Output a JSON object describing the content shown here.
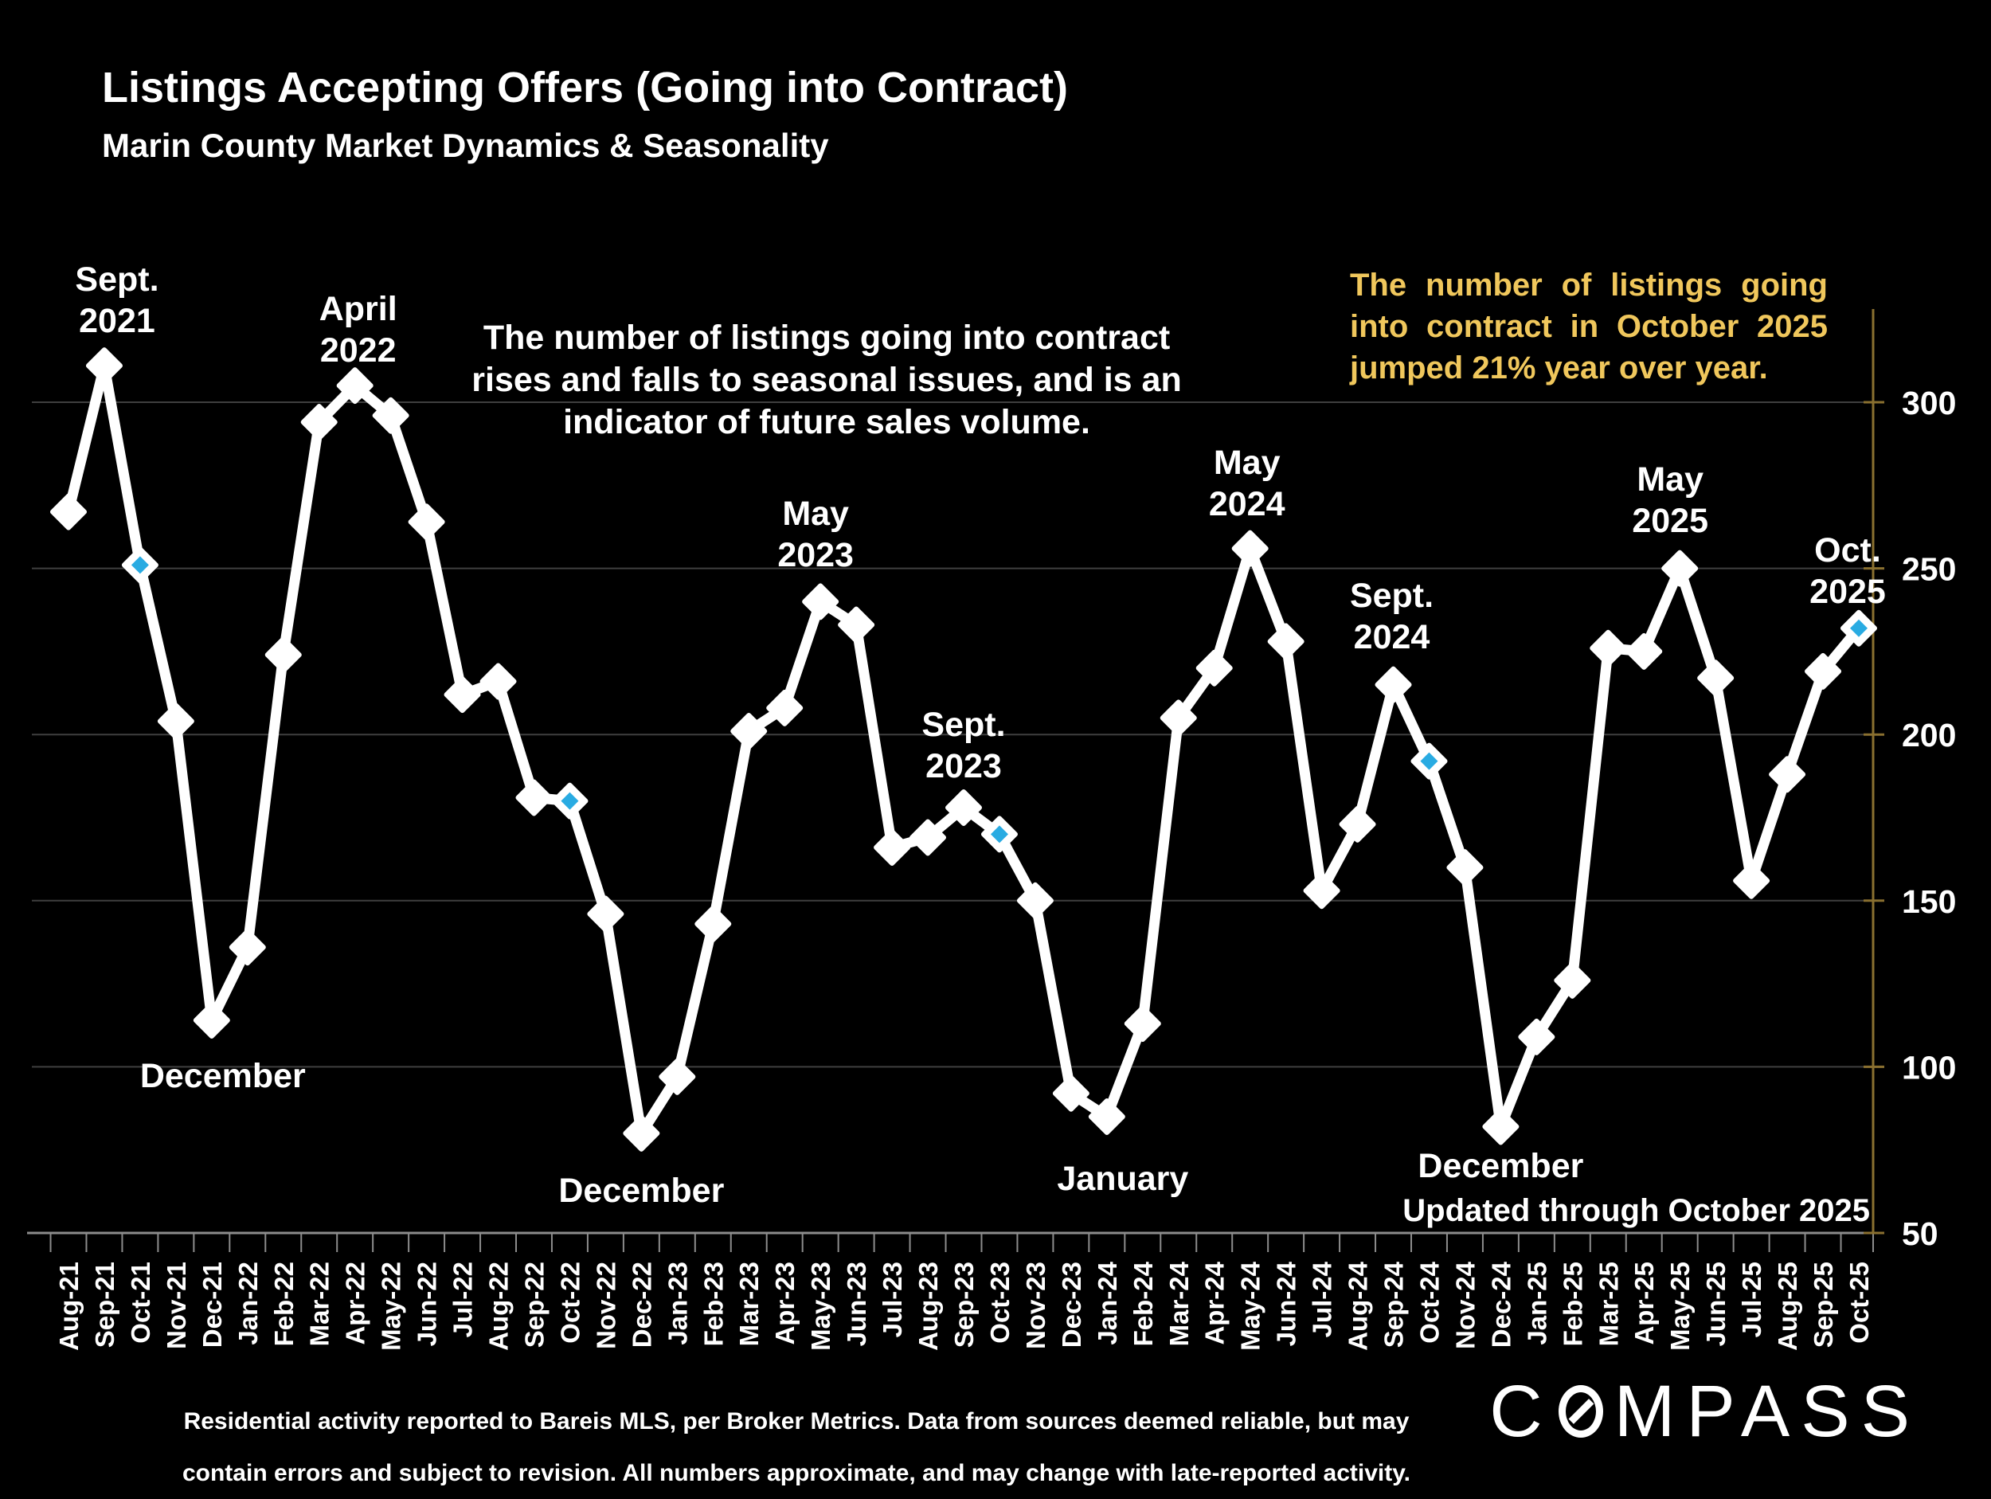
{
  "slide": {
    "title": "Listings Accepting Offers (Going into Contract)",
    "subtitle": "Marin County Market Dynamics & Seasonality",
    "center_annotation_lines": [
      "The number of listings going into contract",
      "rises and falls to seasonal issues, and is an",
      "indicator of future sales volume."
    ],
    "highlight_annotation_lines": [
      "The number of listings going",
      "into contract in October 2025",
      "jumped 21% year over year."
    ],
    "updated_note": "Updated through October 2025",
    "footer_lines": [
      "Residential activity reported to Bareis MLS, per Broker Metrics. Data from sources deemed reliable, but may",
      "contain errors and subject to revision. All numbers approximate, and may change with late-reported activity."
    ],
    "logo_text": "COMPASS"
  },
  "colors": {
    "background": "#000000",
    "line": "#FFFFFF",
    "marker": "#FFFFFF",
    "highlight": "#29ABE2",
    "gridline": "#3F3F3F",
    "x_axis": "#8C8C8C",
    "y_axis": "#8A7030",
    "text": "#FFFFFF",
    "annotation_yellow": "#F0C75C"
  },
  "chart_data": {
    "type": "line",
    "title": "Listings Accepting Offers (Going into Contract)",
    "xlabel": "",
    "ylabel": "",
    "ylim": [
      50,
      300
    ],
    "yticks": [
      50,
      100,
      150,
      200,
      250,
      300
    ],
    "grid": "horizontal",
    "y_axis_side": "right",
    "legend": "none",
    "categories": [
      "Aug-21",
      "Sep-21",
      "Oct-21",
      "Nov-21",
      "Dec-21",
      "Jan-22",
      "Feb-22",
      "Mar-22",
      "Apr-22",
      "May-22",
      "Jun-22",
      "Jul-22",
      "Aug-22",
      "Sep-22",
      "Oct-22",
      "Nov-22",
      "Dec-22",
      "Jan-23",
      "Feb-23",
      "Mar-23",
      "Apr-23",
      "May-23",
      "Jun-23",
      "Jul-23",
      "Aug-23",
      "Sep-23",
      "Oct-23",
      "Nov-23",
      "Dec-23",
      "Jan-24",
      "Feb-24",
      "Mar-24",
      "Apr-24",
      "May-24",
      "Jun-24",
      "Jul-24",
      "Aug-24",
      "Sep-24",
      "Oct-24",
      "Nov-24",
      "Dec-24",
      "Jan-25",
      "Feb-25",
      "Mar-25",
      "Apr-25",
      "May-25",
      "Jun-25",
      "Jul-25",
      "Aug-25",
      "Sep-25",
      "Oct-25"
    ],
    "values": [
      267,
      311,
      251,
      204,
      114,
      136,
      224,
      294,
      305,
      296,
      264,
      212,
      216,
      181,
      180,
      146,
      80,
      97,
      143,
      201,
      208,
      240,
      233,
      166,
      169,
      178,
      170,
      150,
      92,
      85,
      113,
      205,
      220,
      256,
      228,
      153,
      173,
      215,
      192,
      160,
      82,
      109,
      126,
      226,
      225,
      250,
      217,
      156,
      188,
      219,
      232
    ],
    "highlighted_indices": [
      2,
      14,
      26,
      38,
      50
    ],
    "callouts": [
      {
        "lines": [
          "Sept.",
          "2021"
        ],
        "point": 1,
        "side": "above"
      },
      {
        "lines": [
          "April",
          "2022"
        ],
        "point": 8,
        "side": "above"
      },
      {
        "lines": [
          "May",
          "2023"
        ],
        "point": 21,
        "side": "above"
      },
      {
        "lines": [
          "Sept.",
          "2023"
        ],
        "point": 25,
        "side": "above"
      },
      {
        "lines": [
          "May",
          "2024"
        ],
        "point": 33,
        "side": "above"
      },
      {
        "lines": [
          "Sept.",
          "2024"
        ],
        "point": 37,
        "side": "above"
      },
      {
        "lines": [
          "May",
          "2025"
        ],
        "point": 45,
        "side": "above"
      },
      {
        "lines": [
          "Oct.",
          "2025"
        ],
        "point": 50,
        "side": "above"
      },
      {
        "lines": [
          "December"
        ],
        "point": 4,
        "side": "below"
      },
      {
        "lines": [
          "December"
        ],
        "point": 16,
        "side": "below"
      },
      {
        "lines": [
          "January"
        ],
        "point": 29,
        "side": "below"
      },
      {
        "lines": [
          "December"
        ],
        "point": 40,
        "side": "below"
      }
    ]
  }
}
